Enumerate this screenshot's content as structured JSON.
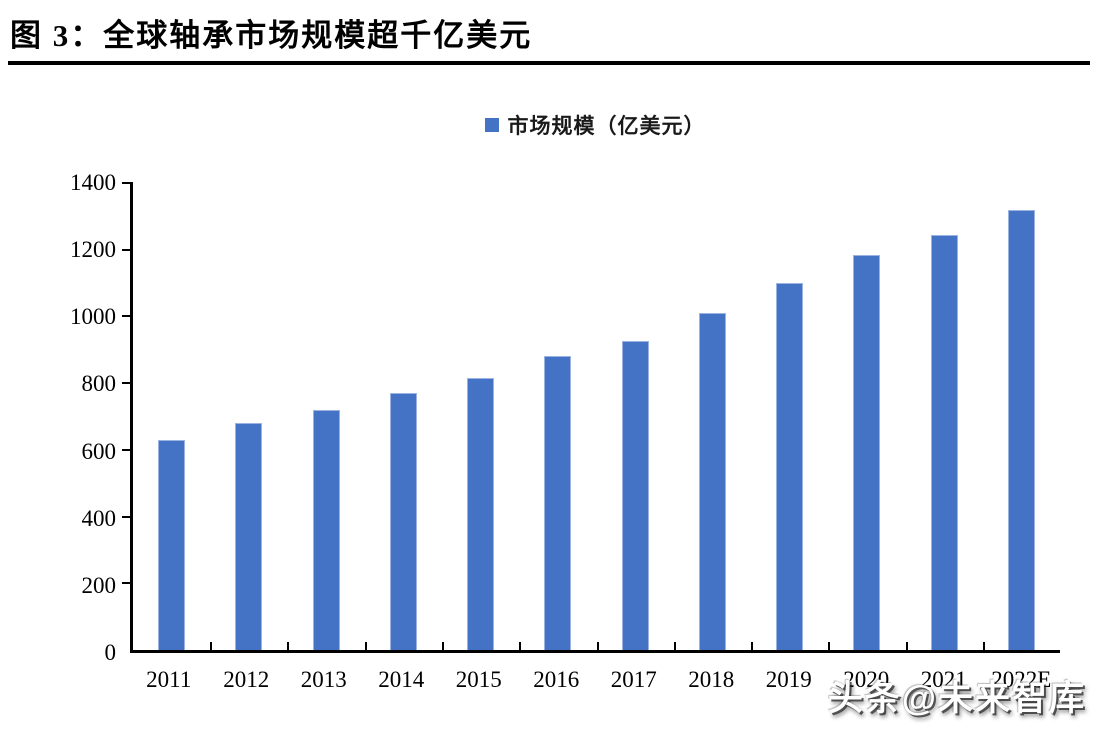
{
  "header": {
    "figure_label": "图 3：",
    "title": "图 3：全球轴承市场规模超千亿美元"
  },
  "legend": {
    "label": "市场规模（亿美元）",
    "marker_color": "#4472C4"
  },
  "footer": {
    "watermark": "头条@未来智库"
  },
  "chart_data": {
    "type": "bar",
    "title": "全球轴承市场规模超千亿美元",
    "series_name": "市场规模（亿美元）",
    "categories": [
      "2011",
      "2012",
      "2013",
      "2014",
      "2015",
      "2016",
      "2017",
      "2018",
      "2019",
      "2020",
      "2021",
      "2022E"
    ],
    "values": [
      630,
      680,
      720,
      770,
      815,
      880,
      925,
      1010,
      1100,
      1185,
      1245,
      1320
    ],
    "xlabel": "",
    "ylabel": "",
    "ylim": [
      0,
      1400
    ],
    "yticks": [
      0,
      200,
      400,
      600,
      800,
      1000,
      1200,
      1400
    ],
    "bar_color": "#4472C4",
    "axis_color": "#000000",
    "grid": false,
    "legend_position": "top-center"
  }
}
